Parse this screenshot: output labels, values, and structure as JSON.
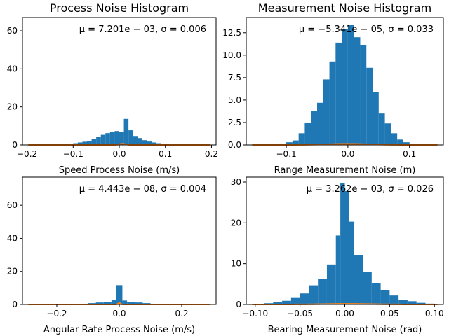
{
  "chart_data": [
    {
      "type": "bar",
      "title": "Process Noise Histogram",
      "xlabel": "Speed Process Noise (m/s)",
      "ylabel": "",
      "annotation": "μ = 7.201e − 03, σ = 0.006",
      "xlim": [
        -0.21,
        0.21
      ],
      "ylim": [
        0,
        67
      ],
      "xticks": [
        -0.2,
        -0.1,
        0.0,
        0.1,
        0.2
      ],
      "xticklabels": [
        "−0.2",
        "−0.1",
        "0.0",
        "0.1",
        "0.2"
      ],
      "yticks": [
        0,
        20,
        40,
        60
      ],
      "yticklabels": [
        "0",
        "20",
        "40",
        "60"
      ],
      "bins": [
        -0.2,
        -0.18,
        -0.16,
        -0.14,
        -0.12,
        -0.1,
        -0.09,
        -0.08,
        -0.07,
        -0.06,
        -0.05,
        -0.04,
        -0.03,
        -0.02,
        -0.01,
        0.0,
        0.01,
        0.02,
        0.03,
        0.04,
        0.05,
        0.06,
        0.07,
        0.08,
        0.09,
        0.1,
        0.12,
        0.14,
        0.16,
        0.18,
        0.2
      ],
      "counts": [
        0.2,
        0.3,
        0.4,
        0.5,
        0.7,
        0.9,
        1.3,
        1.7,
        2.2,
        3.2,
        4.2,
        5.3,
        6.2,
        7.0,
        7.3,
        6.8,
        13.7,
        7.7,
        4.7,
        3.6,
        2.5,
        1.8,
        1.3,
        0.9,
        0.6,
        0.4,
        0.2,
        0.2,
        0.2,
        0.2
      ],
      "fit": {
        "mu": 0.007201,
        "sigma": 0.006,
        "scale": 1
      }
    },
    {
      "type": "bar",
      "title": "Measurement Noise Histogram",
      "xlabel": "Range Measurement Noise (m)",
      "ylabel": "",
      "annotation": "μ = −5.341e − 05, σ = 0.033",
      "xlim": [
        -0.165,
        0.155
      ],
      "ylim": [
        0,
        14.2
      ],
      "xticks": [
        -0.1,
        0.0,
        0.1
      ],
      "xticklabels": [
        "−0.1",
        "0.0",
        "0.1"
      ],
      "yticks": [
        0,
        2.5,
        5.0,
        7.5,
        10.0,
        12.5
      ],
      "yticklabels": [
        "0.0",
        "2.5",
        "5.0",
        "7.5",
        "10.0",
        "12.5"
      ],
      "bins": [
        -0.14,
        -0.13,
        -0.12,
        -0.11,
        -0.1,
        -0.09,
        -0.08,
        -0.07,
        -0.06,
        -0.05,
        -0.04,
        -0.03,
        -0.02,
        -0.01,
        0.0,
        0.01,
        0.02,
        0.03,
        0.04,
        0.05,
        0.06,
        0.07,
        0.08,
        0.09,
        0.1,
        0.11,
        0.12,
        0.13,
        0.14,
        0.15
      ],
      "counts": [
        0.03,
        0.05,
        0.1,
        0.15,
        0.3,
        0.5,
        1.3,
        2.5,
        3.8,
        4.7,
        7.3,
        9.3,
        11.4,
        12.9,
        13.4,
        12.0,
        11.1,
        8.6,
        5.9,
        3.5,
        2.4,
        1.3,
        0.6,
        0.3,
        0.12,
        0.07,
        0.05,
        0.04,
        0.03
      ],
      "fit": {
        "mu": -5.341e-05,
        "sigma": 0.033,
        "scale": 1
      }
    },
    {
      "type": "bar",
      "title": "",
      "xlabel": "Angular Rate Process Noise (m/s)",
      "ylabel": "",
      "annotation": "μ = 4.443e − 08, σ = 0.004",
      "xlim": [
        -0.31,
        0.31
      ],
      "ylim": [
        0,
        77
      ],
      "xticks": [
        -0.2,
        0.0,
        0.2
      ],
      "xticklabels": [
        "−0.2",
        "0.0",
        "0.2"
      ],
      "yticks": [
        0,
        20,
        40,
        60
      ],
      "yticklabels": [
        "0",
        "20",
        "40",
        "60"
      ],
      "bins": [
        -0.3,
        -0.2,
        -0.15,
        -0.1,
        -0.075,
        -0.05,
        -0.025,
        -0.01,
        0.0,
        0.01,
        0.025,
        0.05,
        0.075,
        0.1,
        0.15,
        0.2,
        0.3
      ],
      "counts": [
        0.1,
        0.2,
        0.4,
        0.8,
        1.2,
        1.6,
        2.6,
        11.7,
        11.7,
        2.4,
        1.6,
        1.2,
        0.8,
        0.4,
        0.2,
        0.1
      ],
      "fit": {
        "mu": 4.443e-08,
        "sigma": 0.004,
        "scale": 1.15
      }
    },
    {
      "type": "bar",
      "title": "",
      "xlabel": "Bearing Measurement Noise (rad)",
      "ylabel": "",
      "annotation": "μ = 3.262e − 03, σ = 0.026",
      "xlim": [
        -0.11,
        0.11
      ],
      "ylim": [
        0,
        31.2
      ],
      "xticks": [
        -0.1,
        -0.05,
        0.0,
        0.05,
        0.1
      ],
      "xticklabels": [
        "−0.10",
        "−0.05",
        "0.00",
        "0.05",
        "0.10"
      ],
      "yticks": [
        0,
        10,
        20,
        30
      ],
      "yticklabels": [
        "0",
        "10",
        "20",
        "30"
      ],
      "bins": [
        -0.1,
        -0.09,
        -0.08,
        -0.07,
        -0.06,
        -0.05,
        -0.04,
        -0.03,
        -0.02,
        -0.01,
        -0.005,
        0.0,
        0.005,
        0.01,
        0.02,
        0.03,
        0.04,
        0.05,
        0.06,
        0.07,
        0.08,
        0.09,
        0.1
      ],
      "counts": [
        0.1,
        0.3,
        0.6,
        0.9,
        1.6,
        2.7,
        4.7,
        6.3,
        9.8,
        16.9,
        29.7,
        27.8,
        20.3,
        12.1,
        8.0,
        5.2,
        3.6,
        2.2,
        1.2,
        0.8,
        0.4,
        0.2
      ],
      "fit": {
        "mu": 0.003262,
        "sigma": 0.026,
        "scale": 1
      }
    }
  ]
}
